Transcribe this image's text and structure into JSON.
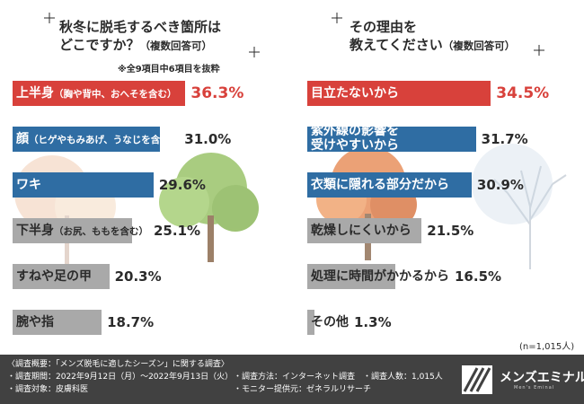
{
  "chart_data": [
    {
      "type": "bar",
      "orientation": "horizontal",
      "title": "秋冬に脱毛するべき箇所は",
      "title_line2": "どこですか？",
      "title_sub": "（複数回答可）",
      "note": "※全9項目中6項目を抜粋",
      "value_suffix": "%",
      "xlim": [
        0,
        60
      ],
      "categories": [
        {
          "main": "上半身",
          "paren": "（胸や背中、おへそを含む）"
        },
        {
          "main": "顔",
          "paren": "（ヒゲやもみあげ、うなじを含む）"
        },
        {
          "main": "ワキ",
          "paren": ""
        },
        {
          "main": "下半身",
          "paren": "（お尻、ももを含む）"
        },
        {
          "main": "すねや足の甲",
          "paren": ""
        },
        {
          "main": "腕や指",
          "paren": ""
        }
      ],
      "values": [
        36.3,
        31.0,
        29.6,
        25.1,
        20.3,
        18.7
      ],
      "value_labels": [
        "36.3%",
        "31.0%",
        "29.6%",
        "25.1%",
        "20.3%",
        "18.7%"
      ],
      "bar_colors": [
        "#d8413b",
        "#2f6da3",
        "#2f6da3",
        "#a9a9a9",
        "#a9a9a9",
        "#a9a9a9"
      ]
    },
    {
      "type": "bar",
      "orientation": "horizontal",
      "title": "その理由を",
      "title_line2": "教えてください",
      "title_sub": "（複数回答可）",
      "note": "(n=1,015人)",
      "value_suffix": "%",
      "xlim": [
        0,
        60
      ],
      "categories": [
        {
          "main": "目立たないから",
          "paren": ""
        },
        {
          "main": "紫外線の影響を受けやすいから",
          "line1": "紫外線の影響を",
          "line2": "受けやすいから",
          "paren": ""
        },
        {
          "main": "衣類に隠れる部分だから",
          "paren": ""
        },
        {
          "main": "乾燥しにくいから",
          "paren": ""
        },
        {
          "main": "処理に時間がかかるから",
          "paren": ""
        },
        {
          "main": "その他",
          "paren": ""
        }
      ],
      "values": [
        34.5,
        31.7,
        30.9,
        21.5,
        16.5,
        1.3
      ],
      "value_labels": [
        "34.5%",
        "31.7%",
        "30.9%",
        "21.5%",
        "16.5%",
        "1.3%"
      ],
      "bar_colors": [
        "#d8413b",
        "#2f6da3",
        "#2f6da3",
        "#a9a9a9",
        "#a9a9a9",
        "#a9a9a9"
      ]
    }
  ],
  "footer": {
    "survey_overview": "〈調査概要：「メンズ脱毛に適したシーズン」に関する調査〉",
    "period": "・調査期間：2022年9月12日（月）〜2022年9月13日（火）",
    "target": "・調査対象：皮膚科医",
    "method": "・調査方法：インターネット調査",
    "count": "・調査人数：1,015人",
    "provider": "・モニター提供元：ゼネラルリサーチ",
    "logo_name": "メンズエミナル",
    "logo_sub": "Men's Eminal"
  },
  "colors": {
    "highlight": "#d8413b",
    "blue": "#2f6da3",
    "gray": "#a9a9a9",
    "footer_bg": "#414141"
  }
}
